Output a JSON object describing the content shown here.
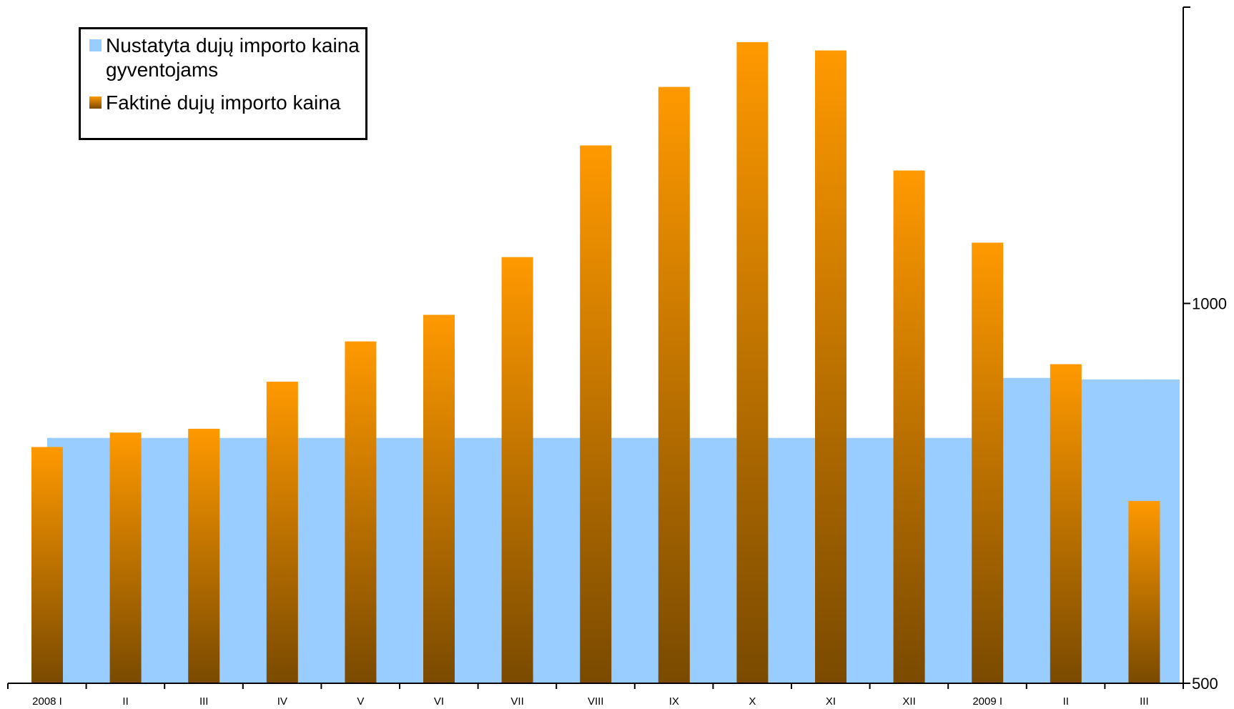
{
  "chart_data": {
    "type": "bar",
    "categories": [
      "2008 I",
      "II",
      "III",
      "IV",
      "V",
      "VI",
      "VII",
      "VIII",
      "IX",
      "X",
      "XI",
      "XII",
      "2009 I",
      "II",
      "III"
    ],
    "series": [
      {
        "name": "Nustatyta dujų importo kaina gyventojams",
        "color": "#99ccff",
        "values": [
          823,
          823,
          823,
          823,
          823,
          823,
          823,
          823,
          823,
          823,
          823,
          823,
          902,
          900,
          900
        ]
      },
      {
        "name": "Faktinė dujų importo kaina",
        "color_top": "#ff9900",
        "color_bottom": "#7a4a00",
        "values": [
          811,
          830,
          835,
          897,
          950,
          985,
          1061,
          1208,
          1285,
          1344,
          1333,
          1175,
          1080,
          920,
          740
        ]
      }
    ],
    "y_axis": {
      "side": "right",
      "ticks": [
        500,
        1000
      ],
      "ylim": [
        500,
        1390
      ]
    },
    "legend": {
      "position": "top-left"
    },
    "grid": false
  }
}
